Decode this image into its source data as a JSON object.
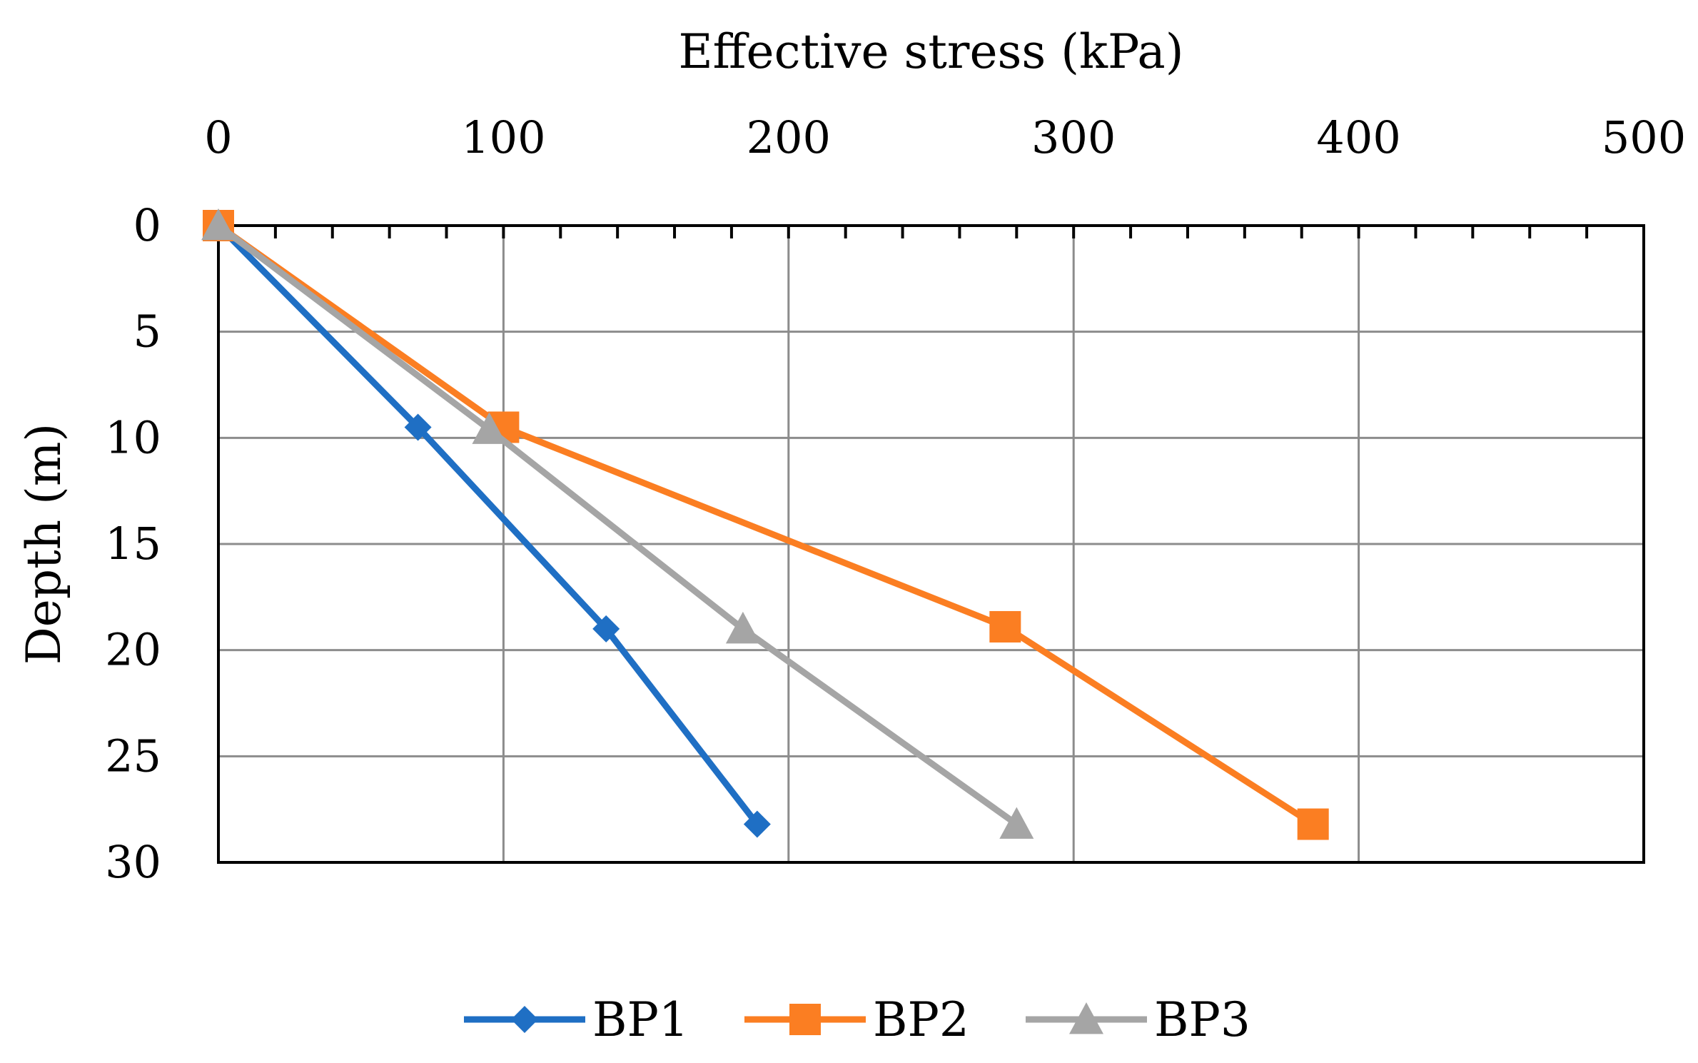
{
  "chart_data": {
    "type": "line",
    "orientation": "depth-profile",
    "title": "",
    "xlabel": "Effective stress (kPa)",
    "ylabel": "Depth (m)",
    "x_axis_position": "top",
    "y_axis_reversed": true,
    "xlim": [
      0,
      500
    ],
    "ylim": [
      0,
      30
    ],
    "x_ticks": [
      0,
      100,
      200,
      300,
      400,
      500
    ],
    "x_tick_labels": [
      "0",
      "100",
      "200",
      "300",
      "400",
      "500"
    ],
    "y_ticks": [
      0,
      5,
      10,
      15,
      20,
      25,
      30
    ],
    "y_tick_labels": [
      "0",
      "5",
      "10",
      "15",
      "20",
      "25",
      "30"
    ],
    "grid": true,
    "legend_position": "bottom",
    "series": [
      {
        "name": "BP1",
        "color": "#1F6FC4",
        "marker": "diamond",
        "points": [
          {
            "stress": 0,
            "depth": 0
          },
          {
            "stress": 70,
            "depth": 9.5
          },
          {
            "stress": 136,
            "depth": 19
          },
          {
            "stress": 189,
            "depth": 28.2
          }
        ]
      },
      {
        "name": "BP2",
        "color": "#FB7E22",
        "marker": "square",
        "points": [
          {
            "stress": 0,
            "depth": 0
          },
          {
            "stress": 100,
            "depth": 9.5
          },
          {
            "stress": 276,
            "depth": 18.9
          },
          {
            "stress": 384,
            "depth": 28.2
          }
        ]
      },
      {
        "name": "BP3",
        "color": "#A5A5A5",
        "marker": "triangle",
        "points": [
          {
            "stress": 0,
            "depth": 0
          },
          {
            "stress": 95,
            "depth": 9.6
          },
          {
            "stress": 184,
            "depth": 19
          },
          {
            "stress": 280,
            "depth": 28.2
          }
        ]
      }
    ]
  }
}
